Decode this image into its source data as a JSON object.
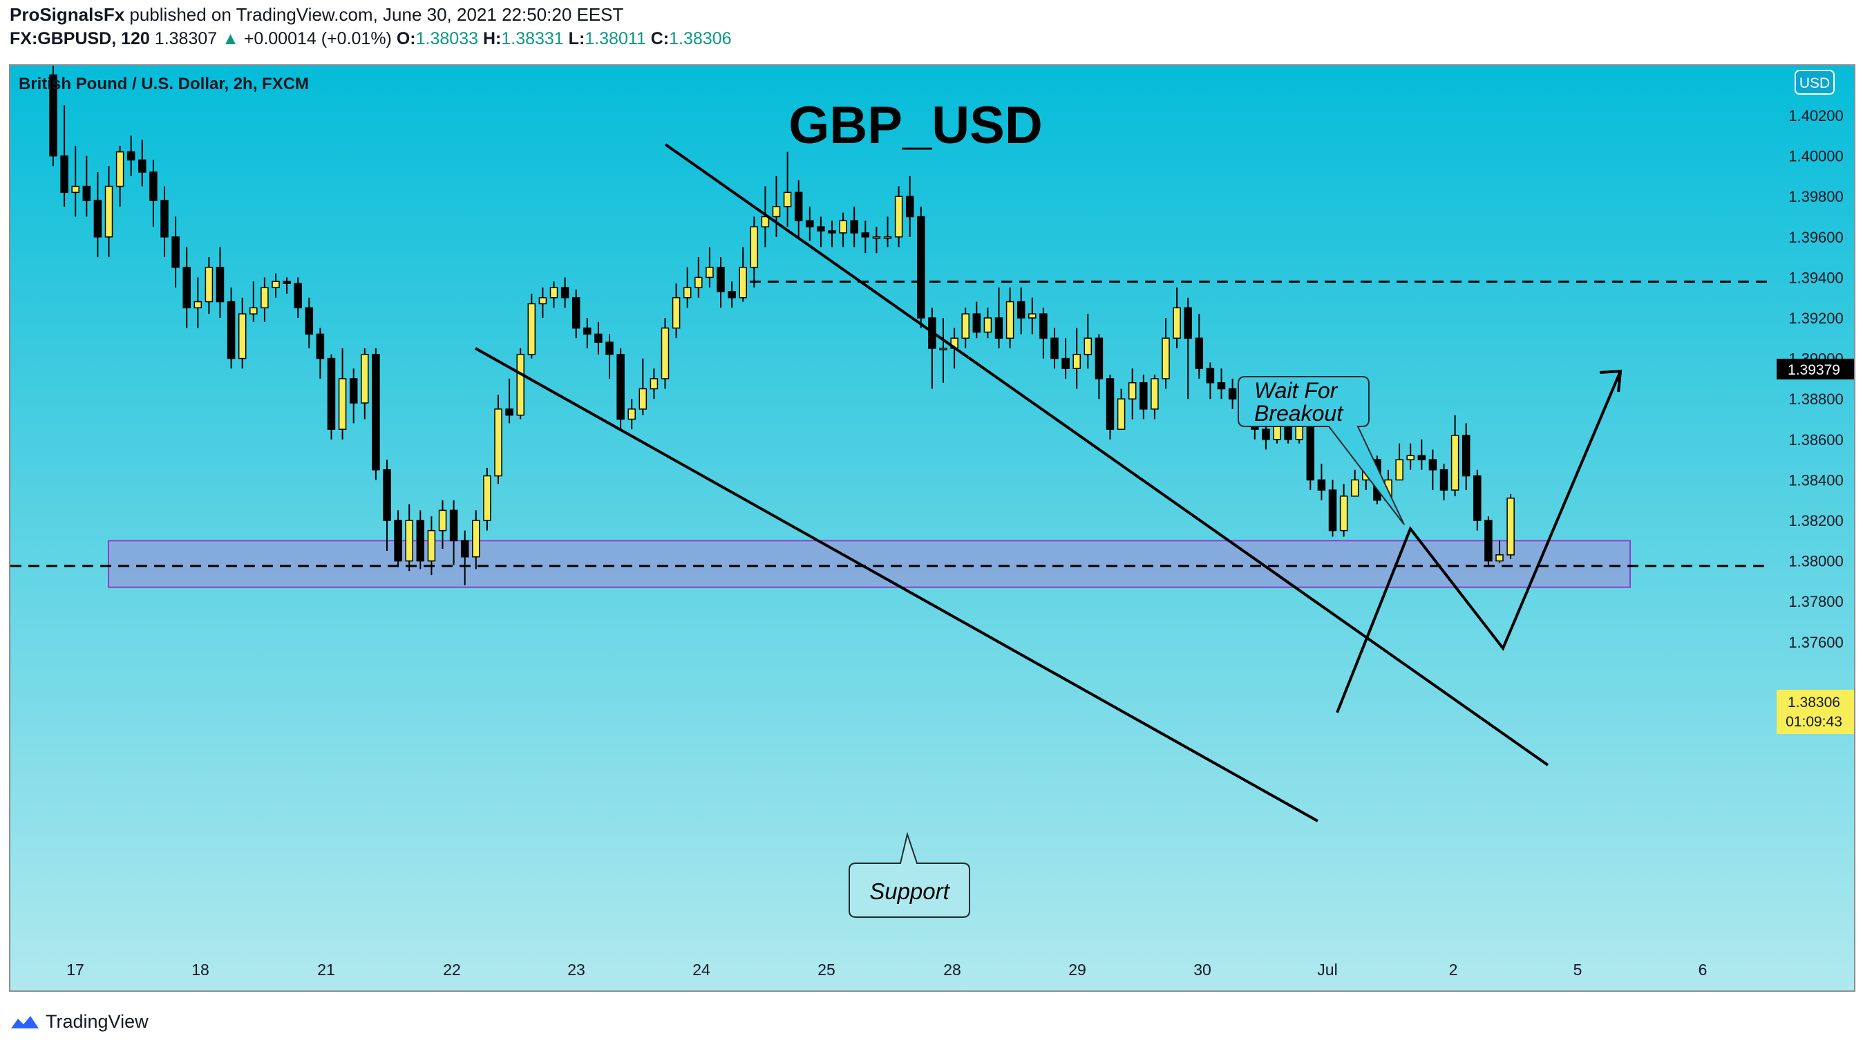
{
  "header": {
    "publisher": "ProSignalsFx",
    "published_text": "published on TradingView.com, June 30, 2021 22:50:20 EEST",
    "symbol": "FX:GBPUSD, 120",
    "last": "1.38307",
    "change_arrow": "▲",
    "change": "+0.00014 (+0.01%)",
    "o_label": "O:",
    "o": "1.38033",
    "h_label": "H:",
    "h": "1.38331",
    "l_label": "L:",
    "l": "1.38011",
    "c_label": "C:",
    "c": "1.38306"
  },
  "footer": {
    "brand": "TradingView",
    "logo_icon": "tradingview-logo-icon"
  },
  "colors": {
    "bg_top": "#05bcd9",
    "bg_bottom": "#b0e9ee",
    "up_body": "#f7ed57",
    "down_body": "#000000",
    "wick": "#000000",
    "support_zone": "#8aa6dc",
    "support_border": "#8c3fc8",
    "price_badge": "#f7ed57",
    "change_green": "#089981"
  },
  "chart_data": {
    "type": "candlestick",
    "symbol_desc": "British Pound / U.S. Dollar, 2h, FXCM",
    "title": "GBP_USD",
    "currency_badge": "USD",
    "yaxis": {
      "ticks": [
        "1.40200",
        "1.40000",
        "1.39800",
        "1.39600",
        "1.39400",
        "1.39200",
        "1.39000",
        "1.38800",
        "1.38600",
        "1.38400",
        "1.38200",
        "1.38000",
        "1.37800",
        "1.37600"
      ],
      "range": [
        1.3745,
        1.4035
      ]
    },
    "xaxis": {
      "ticks": [
        "17",
        "18",
        "21",
        "22",
        "23",
        "24",
        "25",
        "28",
        "29",
        "30",
        "Jul",
        "2",
        "5",
        "6"
      ]
    },
    "current_price": "1.38306",
    "countdown": "01:09:43",
    "target_price": "1.39379",
    "target_level": 1.39379,
    "support_line": 1.37975,
    "support_zone": [
      1.3787,
      1.381
    ],
    "annotations": [
      {
        "text_lines": [
          "Wait For",
          "Breakout"
        ]
      },
      {
        "text_lines": [
          "Support"
        ]
      }
    ],
    "candles": [
      [
        1.404,
        1.4,
        1.4045,
        1.3995
      ],
      [
        1.4,
        1.3982,
        1.4025,
        1.3975
      ],
      [
        1.3982,
        1.3985,
        1.4005,
        1.397
      ],
      [
        1.3985,
        1.3978,
        1.4,
        1.397
      ],
      [
        1.3978,
        1.396,
        1.3992,
        1.395
      ],
      [
        1.396,
        1.3985,
        1.3995,
        1.395
      ],
      [
        1.3985,
        1.4002,
        1.4005,
        1.3975
      ],
      [
        1.4002,
        1.3998,
        1.401,
        1.399
      ],
      [
        1.3998,
        1.3992,
        1.4008,
        1.3985
      ],
      [
        1.3992,
        1.3978,
        1.3998,
        1.3965
      ],
      [
        1.3978,
        1.396,
        1.3985,
        1.395
      ],
      [
        1.396,
        1.3945,
        1.397,
        1.3935
      ],
      [
        1.3945,
        1.3925,
        1.3955,
        1.3915
      ],
      [
        1.3925,
        1.3928,
        1.394,
        1.3915
      ],
      [
        1.3928,
        1.3945,
        1.395,
        1.3922
      ],
      [
        1.3945,
        1.3928,
        1.3955,
        1.392
      ],
      [
        1.3928,
        1.39,
        1.3935,
        1.3895
      ],
      [
        1.39,
        1.3922,
        1.393,
        1.3895
      ],
      [
        1.3922,
        1.3925,
        1.3938,
        1.3918
      ],
      [
        1.3925,
        1.3935,
        1.394,
        1.3918
      ],
      [
        1.3935,
        1.3938,
        1.3942,
        1.393
      ],
      [
        1.3938,
        1.3937,
        1.394,
        1.3932
      ],
      [
        1.3937,
        1.3925,
        1.394,
        1.392
      ],
      [
        1.3925,
        1.3912,
        1.393,
        1.3905
      ],
      [
        1.3912,
        1.39,
        1.3915,
        1.389
      ],
      [
        1.39,
        1.3865,
        1.3902,
        1.386
      ],
      [
        1.3865,
        1.389,
        1.3905,
        1.386
      ],
      [
        1.389,
        1.3878,
        1.3895,
        1.3868
      ],
      [
        1.3878,
        1.3902,
        1.3905,
        1.387
      ],
      [
        1.3902,
        1.3845,
        1.3905,
        1.384
      ],
      [
        1.3845,
        1.382,
        1.385,
        1.3805
      ],
      [
        1.382,
        1.38,
        1.3825,
        1.3797
      ],
      [
        1.38,
        1.382,
        1.3828,
        1.3795
      ],
      [
        1.382,
        1.38,
        1.3825,
        1.3796
      ],
      [
        1.38,
        1.3815,
        1.3822,
        1.3793
      ],
      [
        1.3815,
        1.3825,
        1.383,
        1.3806
      ],
      [
        1.3825,
        1.381,
        1.383,
        1.3798
      ],
      [
        1.381,
        1.3802,
        1.3815,
        1.3788
      ],
      [
        1.3802,
        1.382,
        1.3825,
        1.3796
      ],
      [
        1.382,
        1.3842,
        1.3846,
        1.3815
      ],
      [
        1.3842,
        1.3875,
        1.3882,
        1.3838
      ],
      [
        1.3875,
        1.3872,
        1.389,
        1.3868
      ],
      [
        1.3872,
        1.3902,
        1.3905,
        1.387
      ],
      [
        1.3902,
        1.3927,
        1.3932,
        1.39
      ],
      [
        1.3927,
        1.393,
        1.3935,
        1.392
      ],
      [
        1.393,
        1.3935,
        1.3938,
        1.3925
      ],
      [
        1.3935,
        1.393,
        1.394,
        1.3925
      ],
      [
        1.393,
        1.3915,
        1.3934,
        1.391
      ],
      [
        1.3915,
        1.3912,
        1.392,
        1.3905
      ],
      [
        1.3912,
        1.3908,
        1.3918,
        1.3902
      ],
      [
        1.3908,
        1.3902,
        1.3912,
        1.389
      ],
      [
        1.3902,
        1.387,
        1.3905,
        1.3865
      ],
      [
        1.387,
        1.3875,
        1.388,
        1.3865
      ],
      [
        1.3875,
        1.3885,
        1.39,
        1.3872
      ],
      [
        1.3885,
        1.389,
        1.3895,
        1.388
      ],
      [
        1.389,
        1.3915,
        1.392,
        1.3885
      ],
      [
        1.3915,
        1.393,
        1.3937,
        1.391
      ],
      [
        1.393,
        1.3935,
        1.3945,
        1.3925
      ],
      [
        1.3935,
        1.394,
        1.395,
        1.393
      ],
      [
        1.394,
        1.3945,
        1.3955,
        1.3935
      ],
      [
        1.3945,
        1.3933,
        1.395,
        1.3925
      ],
      [
        1.3933,
        1.393,
        1.3938,
        1.3925
      ],
      [
        1.393,
        1.3945,
        1.3955,
        1.3928
      ],
      [
        1.3945,
        1.3965,
        1.397,
        1.3935
      ],
      [
        1.3965,
        1.397,
        1.3985,
        1.3955
      ],
      [
        1.397,
        1.3975,
        1.399,
        1.396
      ],
      [
        1.3975,
        1.3982,
        1.4002,
        1.3965
      ],
      [
        1.3982,
        1.3968,
        1.3988,
        1.396
      ],
      [
        1.3968,
        1.3965,
        1.3975,
        1.3958
      ],
      [
        1.3965,
        1.3963,
        1.397,
        1.3955
      ],
      [
        1.3963,
        1.3962,
        1.3968,
        1.3955
      ],
      [
        1.3962,
        1.3968,
        1.3972,
        1.3955
      ],
      [
        1.3968,
        1.3962,
        1.3975,
        1.3955
      ],
      [
        1.3962,
        1.396,
        1.3968,
        1.3952
      ],
      [
        1.396,
        1.396,
        1.3965,
        1.3952
      ],
      [
        1.396,
        1.396,
        1.397,
        1.3955
      ],
      [
        1.396,
        1.398,
        1.3985,
        1.3955
      ],
      [
        1.398,
        1.397,
        1.399,
        1.396
      ],
      [
        1.397,
        1.392,
        1.3975,
        1.3915
      ],
      [
        1.392,
        1.3905,
        1.3925,
        1.3885
      ],
      [
        1.3905,
        1.3905,
        1.392,
        1.3888
      ],
      [
        1.3905,
        1.391,
        1.3915,
        1.3895
      ],
      [
        1.391,
        1.3922,
        1.3925,
        1.3905
      ],
      [
        1.3922,
        1.3913,
        1.3928,
        1.391
      ],
      [
        1.3913,
        1.392,
        1.3925,
        1.391
      ],
      [
        1.392,
        1.391,
        1.3935,
        1.3905
      ],
      [
        1.391,
        1.3928,
        1.3935,
        1.3905
      ],
      [
        1.3928,
        1.392,
        1.3935,
        1.3912
      ],
      [
        1.392,
        1.3922,
        1.393,
        1.3912
      ],
      [
        1.3922,
        1.391,
        1.3925,
        1.39
      ],
      [
        1.391,
        1.39,
        1.3915,
        1.3895
      ],
      [
        1.39,
        1.3895,
        1.391,
        1.389
      ],
      [
        1.3895,
        1.3902,
        1.3915,
        1.3885
      ],
      [
        1.3902,
        1.391,
        1.3922,
        1.3895
      ],
      [
        1.391,
        1.389,
        1.3912,
        1.388
      ],
      [
        1.389,
        1.3865,
        1.3892,
        1.386
      ],
      [
        1.3865,
        1.388,
        1.3885,
        1.3865
      ],
      [
        1.388,
        1.3888,
        1.3895,
        1.387
      ],
      [
        1.3888,
        1.3875,
        1.3892,
        1.387
      ],
      [
        1.3875,
        1.389,
        1.3892,
        1.387
      ],
      [
        1.389,
        1.391,
        1.392,
        1.3885
      ],
      [
        1.391,
        1.3925,
        1.3935,
        1.3905
      ],
      [
        1.3925,
        1.391,
        1.393,
        1.388
      ],
      [
        1.391,
        1.3895,
        1.3922,
        1.389
      ],
      [
        1.3895,
        1.3888,
        1.3898,
        1.388
      ],
      [
        1.3888,
        1.3885,
        1.3895,
        1.388
      ],
      [
        1.3885,
        1.388,
        1.389,
        1.3875
      ],
      [
        1.388,
        1.388,
        1.3885,
        1.3875
      ],
      [
        1.388,
        1.3865,
        1.3885,
        1.386
      ],
      [
        1.3865,
        1.386,
        1.387,
        1.3855
      ],
      [
        1.386,
        1.3867,
        1.3872,
        1.3858
      ],
      [
        1.3867,
        1.386,
        1.3875,
        1.3858
      ],
      [
        1.386,
        1.387,
        1.388,
        1.3858
      ],
      [
        1.387,
        1.384,
        1.3872,
        1.3835
      ],
      [
        1.384,
        1.3835,
        1.3848,
        1.383
      ],
      [
        1.3835,
        1.3815,
        1.384,
        1.3812
      ],
      [
        1.3815,
        1.3832,
        1.3838,
        1.3812
      ],
      [
        1.3832,
        1.384,
        1.3845,
        1.3832
      ],
      [
        1.384,
        1.385,
        1.3858,
        1.3835
      ],
      [
        1.385,
        1.383,
        1.3852,
        1.3828
      ],
      [
        1.383,
        1.384,
        1.3845,
        1.3828
      ],
      [
        1.384,
        1.385,
        1.3858,
        1.384
      ],
      [
        1.385,
        1.3852,
        1.3858,
        1.3845
      ],
      [
        1.3852,
        1.385,
        1.386,
        1.3845
      ],
      [
        1.385,
        1.3845,
        1.3855,
        1.3835
      ],
      [
        1.3845,
        1.3835,
        1.3848,
        1.383
      ],
      [
        1.3835,
        1.3862,
        1.3872,
        1.3832
      ],
      [
        1.3862,
        1.3842,
        1.3868,
        1.3835
      ],
      [
        1.3842,
        1.382,
        1.3845,
        1.3815
      ],
      [
        1.382,
        1.38,
        1.3822,
        1.3797
      ],
      [
        1.38,
        1.3803,
        1.381,
        1.3799
      ],
      [
        1.3803,
        1.3831,
        1.3833,
        1.3801
      ]
    ]
  }
}
